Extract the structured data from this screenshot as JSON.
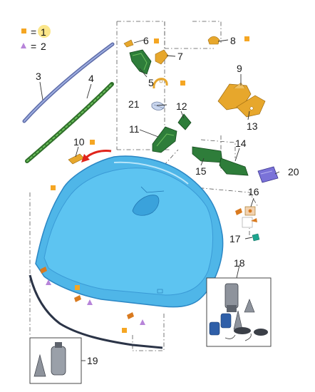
{
  "legend": [
    {
      "marker": "orange-square",
      "color": "#f5a623",
      "equals": "=",
      "value": "1"
    },
    {
      "marker": "purple-triangle",
      "color": "#b784d9",
      "equals": "=",
      "value": "2"
    }
  ],
  "callouts": [
    "1",
    "2",
    "3",
    "4",
    "5",
    "6",
    "7",
    "8",
    "9",
    "10",
    "11",
    "12",
    "13",
    "14",
    "15",
    "16",
    "17",
    "18",
    "19",
    "20",
    "21"
  ],
  "colors": {
    "glass": "#4fb6e8",
    "glass_edge": "#2a86c4",
    "mirror": "#2e7d3a",
    "trim_green": "#3f8f3a",
    "bracket_orange": "#e7a72c",
    "seal_blue": "#7c8fc4",
    "sensor_purple": "#7a72d8",
    "arrow_red": "#e0241b",
    "legend_orange": "#f5a623",
    "legend_purple": "#b784d9"
  }
}
